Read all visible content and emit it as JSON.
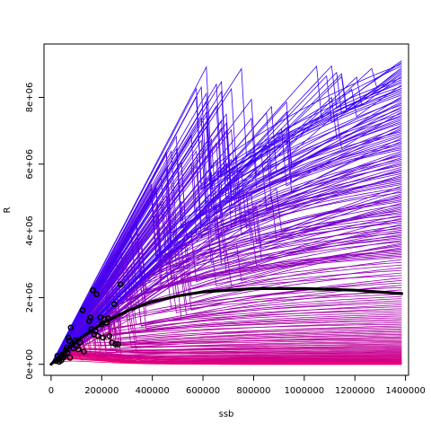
{
  "chart_data": {
    "type": "line",
    "title": "",
    "xlabel": "ssb",
    "ylabel": "R",
    "xlim": [
      -28000,
      1412000
    ],
    "ylim": [
      -330000,
      9600000
    ],
    "grid": false,
    "legend": "none",
    "x_ticks": [
      0,
      200000,
      400000,
      600000,
      800000,
      1000000,
      1200000,
      1400000
    ],
    "x_tick_labels": [
      "0",
      "200000",
      "400000",
      "600000",
      "800000",
      "1000000",
      "1200000",
      "1400000"
    ],
    "y_ticks": [
      0,
      2000000,
      4000000,
      6000000,
      8000000
    ],
    "y_tick_labels": [
      "0e+00",
      "2e+06",
      "4e+06",
      "6e+06",
      "8e+06"
    ],
    "fitted_curve": {
      "model": "ricker",
      "x_max": 1385000,
      "points": [
        [
          0,
          0
        ],
        [
          100000,
          700000
        ],
        [
          200000,
          1220000
        ],
        [
          300000,
          1600000
        ],
        [
          400000,
          1880000
        ],
        [
          500000,
          2050000
        ],
        [
          600000,
          2170000
        ],
        [
          800000,
          2270000
        ],
        [
          1000000,
          2270000
        ],
        [
          1200000,
          2220000
        ],
        [
          1385000,
          2120000
        ]
      ]
    },
    "simulated_curves": {
      "count": 220,
      "x_max": 1385000,
      "color_low": "#ff0066",
      "color_high": "#3300ff",
      "end_value_range": [
        0,
        9100000
      ]
    },
    "observations": [
      [
        20000,
        100000
      ],
      [
        25000,
        250000
      ],
      [
        28000,
        150000
      ],
      [
        32000,
        80000
      ],
      [
        35000,
        180000
      ],
      [
        40000,
        120000
      ],
      [
        45000,
        300000
      ],
      [
        48000,
        200000
      ],
      [
        52000,
        260000
      ],
      [
        58000,
        420000
      ],
      [
        62000,
        500000
      ],
      [
        65000,
        350000
      ],
      [
        68000,
        800000
      ],
      [
        72000,
        700000
      ],
      [
        75000,
        200000
      ],
      [
        78000,
        1100000
      ],
      [
        82000,
        600000
      ],
      [
        88000,
        480000
      ],
      [
        95000,
        720000
      ],
      [
        100000,
        550000
      ],
      [
        108000,
        450000
      ],
      [
        115000,
        650000
      ],
      [
        125000,
        1620000
      ],
      [
        130000,
        380000
      ],
      [
        150000,
        1300000
      ],
      [
        155000,
        1400000
      ],
      [
        160000,
        1050000
      ],
      [
        165000,
        2220000
      ],
      [
        170000,
        900000
      ],
      [
        175000,
        1000000
      ],
      [
        180000,
        2100000
      ],
      [
        185000,
        850000
      ],
      [
        195000,
        1400000
      ],
      [
        200000,
        1200000
      ],
      [
        205000,
        800000
      ],
      [
        210000,
        1350000
      ],
      [
        220000,
        1250000
      ],
      [
        225000,
        1380000
      ],
      [
        230000,
        850000
      ],
      [
        240000,
        650000
      ],
      [
        250000,
        1800000
      ],
      [
        255000,
        600000
      ],
      [
        265000,
        600000
      ],
      [
        275000,
        2400000
      ]
    ]
  },
  "colors": {
    "fitted_line": "#000000",
    "points": "#000000",
    "axis": "#000000",
    "background": "#ffffff"
  }
}
